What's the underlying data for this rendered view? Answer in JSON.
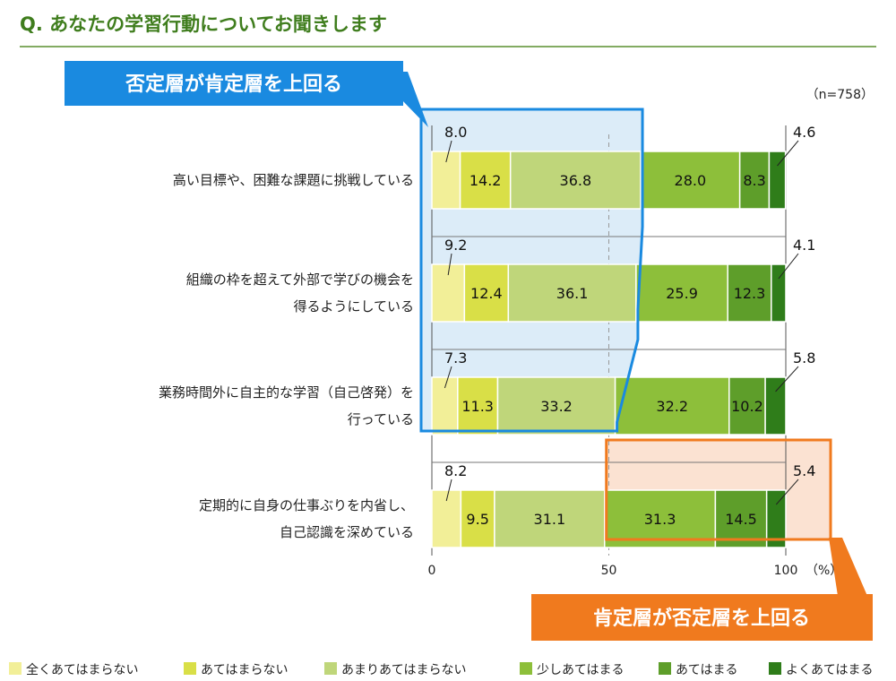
{
  "chart_data": {
    "type": "bar",
    "orientation": "horizontal",
    "stacked": true,
    "title": "Q. あなたの学習行動についてお聞きします",
    "sample_size": "（n=758）",
    "categories": [
      [
        "高い目標や、困難な課題に挑戦している"
      ],
      [
        "組織の枠を超えて外部で学びの機会を",
        "得るようにしている"
      ],
      [
        "業務時間外に自主的な学習（自己啓発）を",
        "行っている"
      ],
      [
        "定期的に自身の仕事ぶりを内省し、",
        "自己認識を深めている"
      ]
    ],
    "series": [
      {
        "name": "全くあてはまらない",
        "color": "#f2ef98",
        "values": [
          8.0,
          9.2,
          7.3,
          8.2
        ]
      },
      {
        "name": "あてはまらない",
        "color": "#d9df47",
        "values": [
          14.2,
          12.4,
          11.3,
          9.5
        ]
      },
      {
        "name": "あまりあてはまらない",
        "color": "#bfd67a",
        "values": [
          36.8,
          36.1,
          33.2,
          31.1
        ]
      },
      {
        "name": "少しあてはまる",
        "color": "#8dbf3a",
        "values": [
          28.0,
          25.9,
          32.2,
          31.3
        ]
      },
      {
        "name": "あてはまる",
        "color": "#5e9e2a",
        "values": [
          8.3,
          12.3,
          10.2,
          14.5
        ]
      },
      {
        "name": "よくあてはまる",
        "color": "#2f7d1a",
        "values": [
          4.6,
          4.1,
          5.8,
          5.4
        ]
      }
    ],
    "value_labels": [
      [
        "8.0",
        "14.2",
        "36.8",
        "28.0",
        "8.3",
        "4.6"
      ],
      [
        "9.2",
        "12.4",
        "36.1",
        "25.9",
        "12.3",
        "4.1"
      ],
      [
        "7.3",
        "11.3",
        "33.2",
        "32.2",
        "10.2",
        "5.8"
      ],
      [
        "8.2",
        "9.5",
        "31.1",
        "31.3",
        "14.5",
        "5.4"
      ]
    ],
    "xlim": [
      0,
      100
    ],
    "x_ticks": [
      "0",
      "50",
      "100"
    ],
    "x_unit": "（%）",
    "callouts": [
      {
        "text": "否定層が肯定層を上回る",
        "color": "#1a8ae0",
        "fill": "#dcecf8",
        "rows": [
          0,
          1,
          2
        ],
        "side": "negative"
      },
      {
        "text": "肯定層が否定層を上回る",
        "color": "#f07a1e",
        "fill": "#fbe2d2",
        "rows": [
          3
        ],
        "side": "positive"
      }
    ]
  }
}
